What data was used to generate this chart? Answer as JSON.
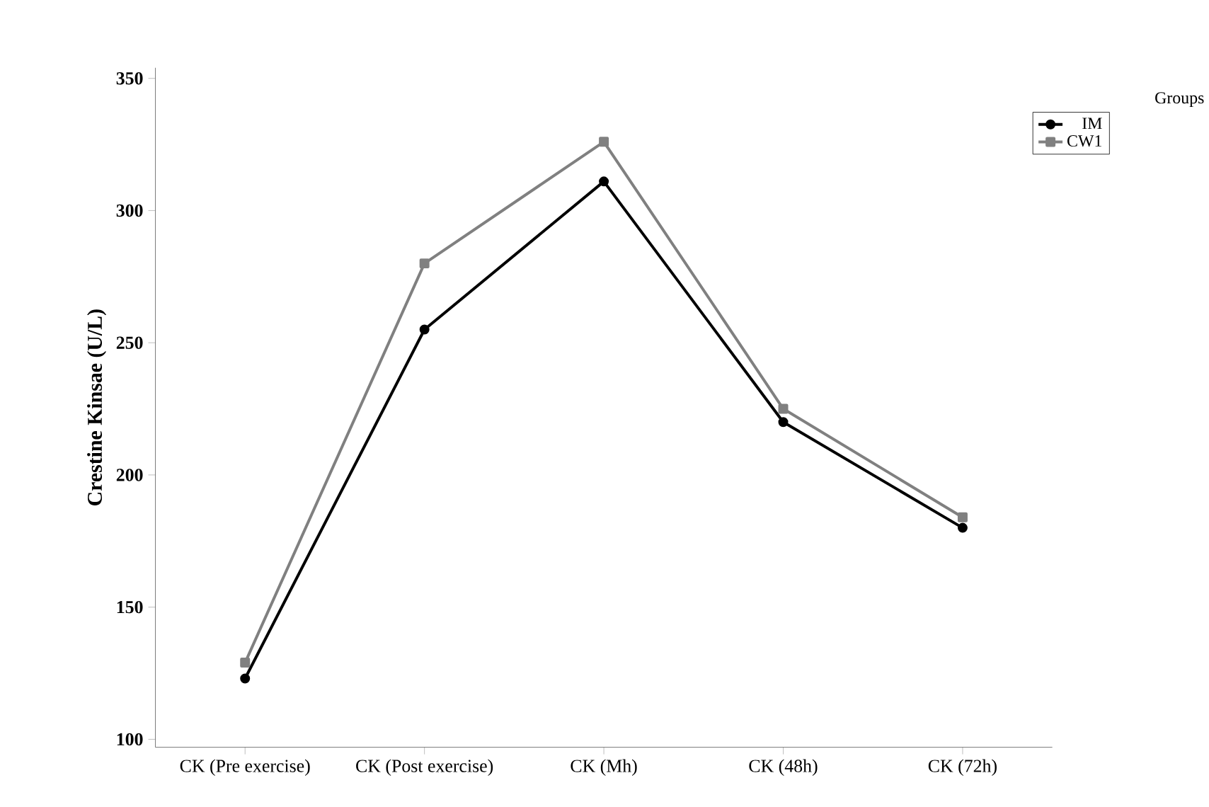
{
  "chart_data": {
    "type": "line",
    "ylabel": "Crestine Kinsae  (U/L)",
    "legend_title": "Groups",
    "categories": [
      "CK (Pre exercise)",
      "CK (Post exercise)",
      "CK (Mh)",
      "CK (48h)",
      "CK (72h)"
    ],
    "series": [
      {
        "name": "IM",
        "color": "#000000",
        "marker": "circle",
        "values": [
          123,
          255,
          311,
          220,
          180
        ]
      },
      {
        "name": "CW1",
        "color": "#808080",
        "marker": "square",
        "values": [
          129,
          280,
          326,
          225,
          184
        ]
      }
    ],
    "ylim": [
      97,
      354
    ],
    "yticks": [
      100,
      150,
      200,
      250,
      300,
      350
    ],
    "grid": false,
    "legend": "top right",
    "line_style": "solid"
  }
}
